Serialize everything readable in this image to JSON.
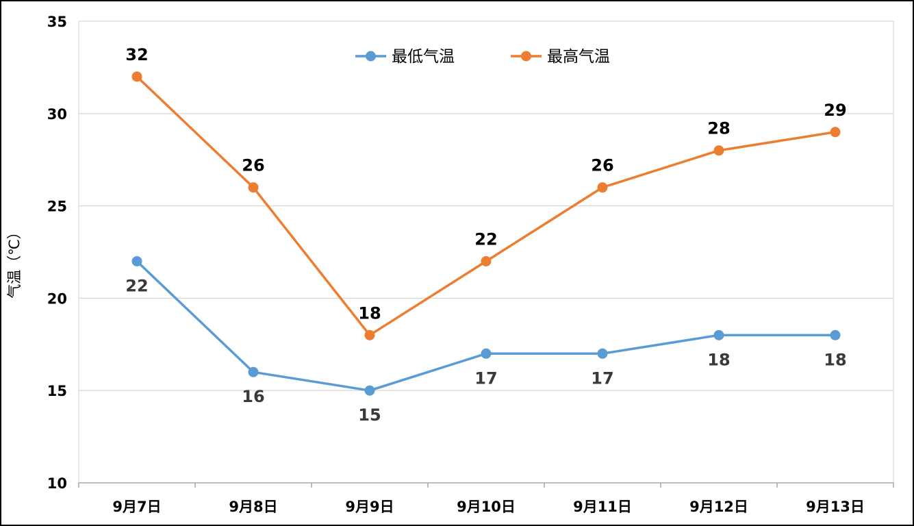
{
  "chart_data": {
    "type": "line",
    "title": "",
    "xlabel": "",
    "ylabel": "气温（℃）",
    "categories": [
      "9月7日",
      "9月8日",
      "9月9日",
      "9月10日",
      "9月11日",
      "9月12日",
      "9月13日"
    ],
    "ylim": [
      10,
      35
    ],
    "yticks": [
      10,
      15,
      20,
      25,
      30,
      35
    ],
    "grid": true,
    "legend": "top-center",
    "series": [
      {
        "name": "最低气温",
        "color": "#5b9bd5",
        "values": [
          22,
          16,
          15,
          17,
          17,
          18,
          18
        ],
        "label_position": "below"
      },
      {
        "name": "最高气温",
        "color": "#ed7d31",
        "values": [
          32,
          26,
          18,
          22,
          26,
          28,
          29
        ],
        "label_position": "above"
      }
    ]
  }
}
